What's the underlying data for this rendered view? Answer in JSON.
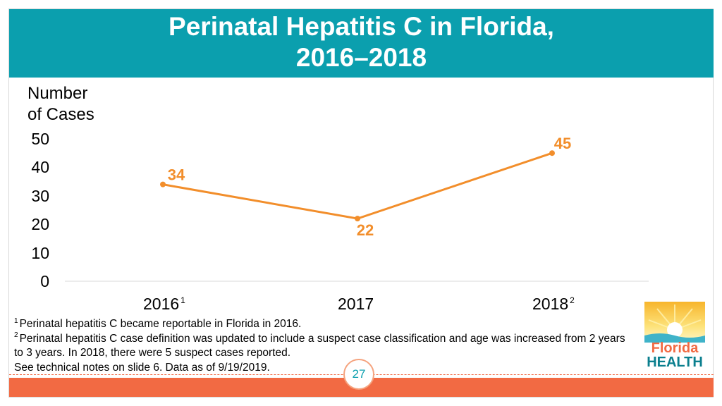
{
  "slide": {
    "title_line1": "Perinatal Hepatitis C in Florida,",
    "title_line2": "2016–2018",
    "page_number": "27"
  },
  "colors": {
    "header": "#0b9fae",
    "series": "#f28e2b",
    "accent_bar": "#f26a43"
  },
  "chart_data": {
    "type": "line",
    "title": "Perinatal Hepatitis C in Florida, 2016–2018",
    "ylabel_line1": "Number",
    "ylabel_line2": "of Cases",
    "xlabel": "",
    "ylim": [
      0,
      50
    ],
    "yticks": [
      "50",
      "40",
      "30",
      "20",
      "10",
      "0"
    ],
    "categories": [
      "2016",
      "2017",
      "2018"
    ],
    "category_superscripts": [
      "1",
      "",
      "2"
    ],
    "values": [
      34,
      22,
      45
    ],
    "data_labels": [
      "34",
      "22",
      "45"
    ],
    "grid": false,
    "legend": "none"
  },
  "footnotes": {
    "fn1_marker": "1",
    "fn1_text": "Perinatal hepatitis C became reportable in Florida in 2016.",
    "fn2_marker": "2",
    "fn2_text": "Perinatal hepatitis C case definition was updated to include a suspect case classification and age was increased from 2 years to 3 years. In 2018, there were 5 suspect cases reported.",
    "note": "See technical notes on slide 6. Data as of 9/19/2019."
  },
  "logo": {
    "line1": "Florida",
    "line2": "HEALTH"
  }
}
